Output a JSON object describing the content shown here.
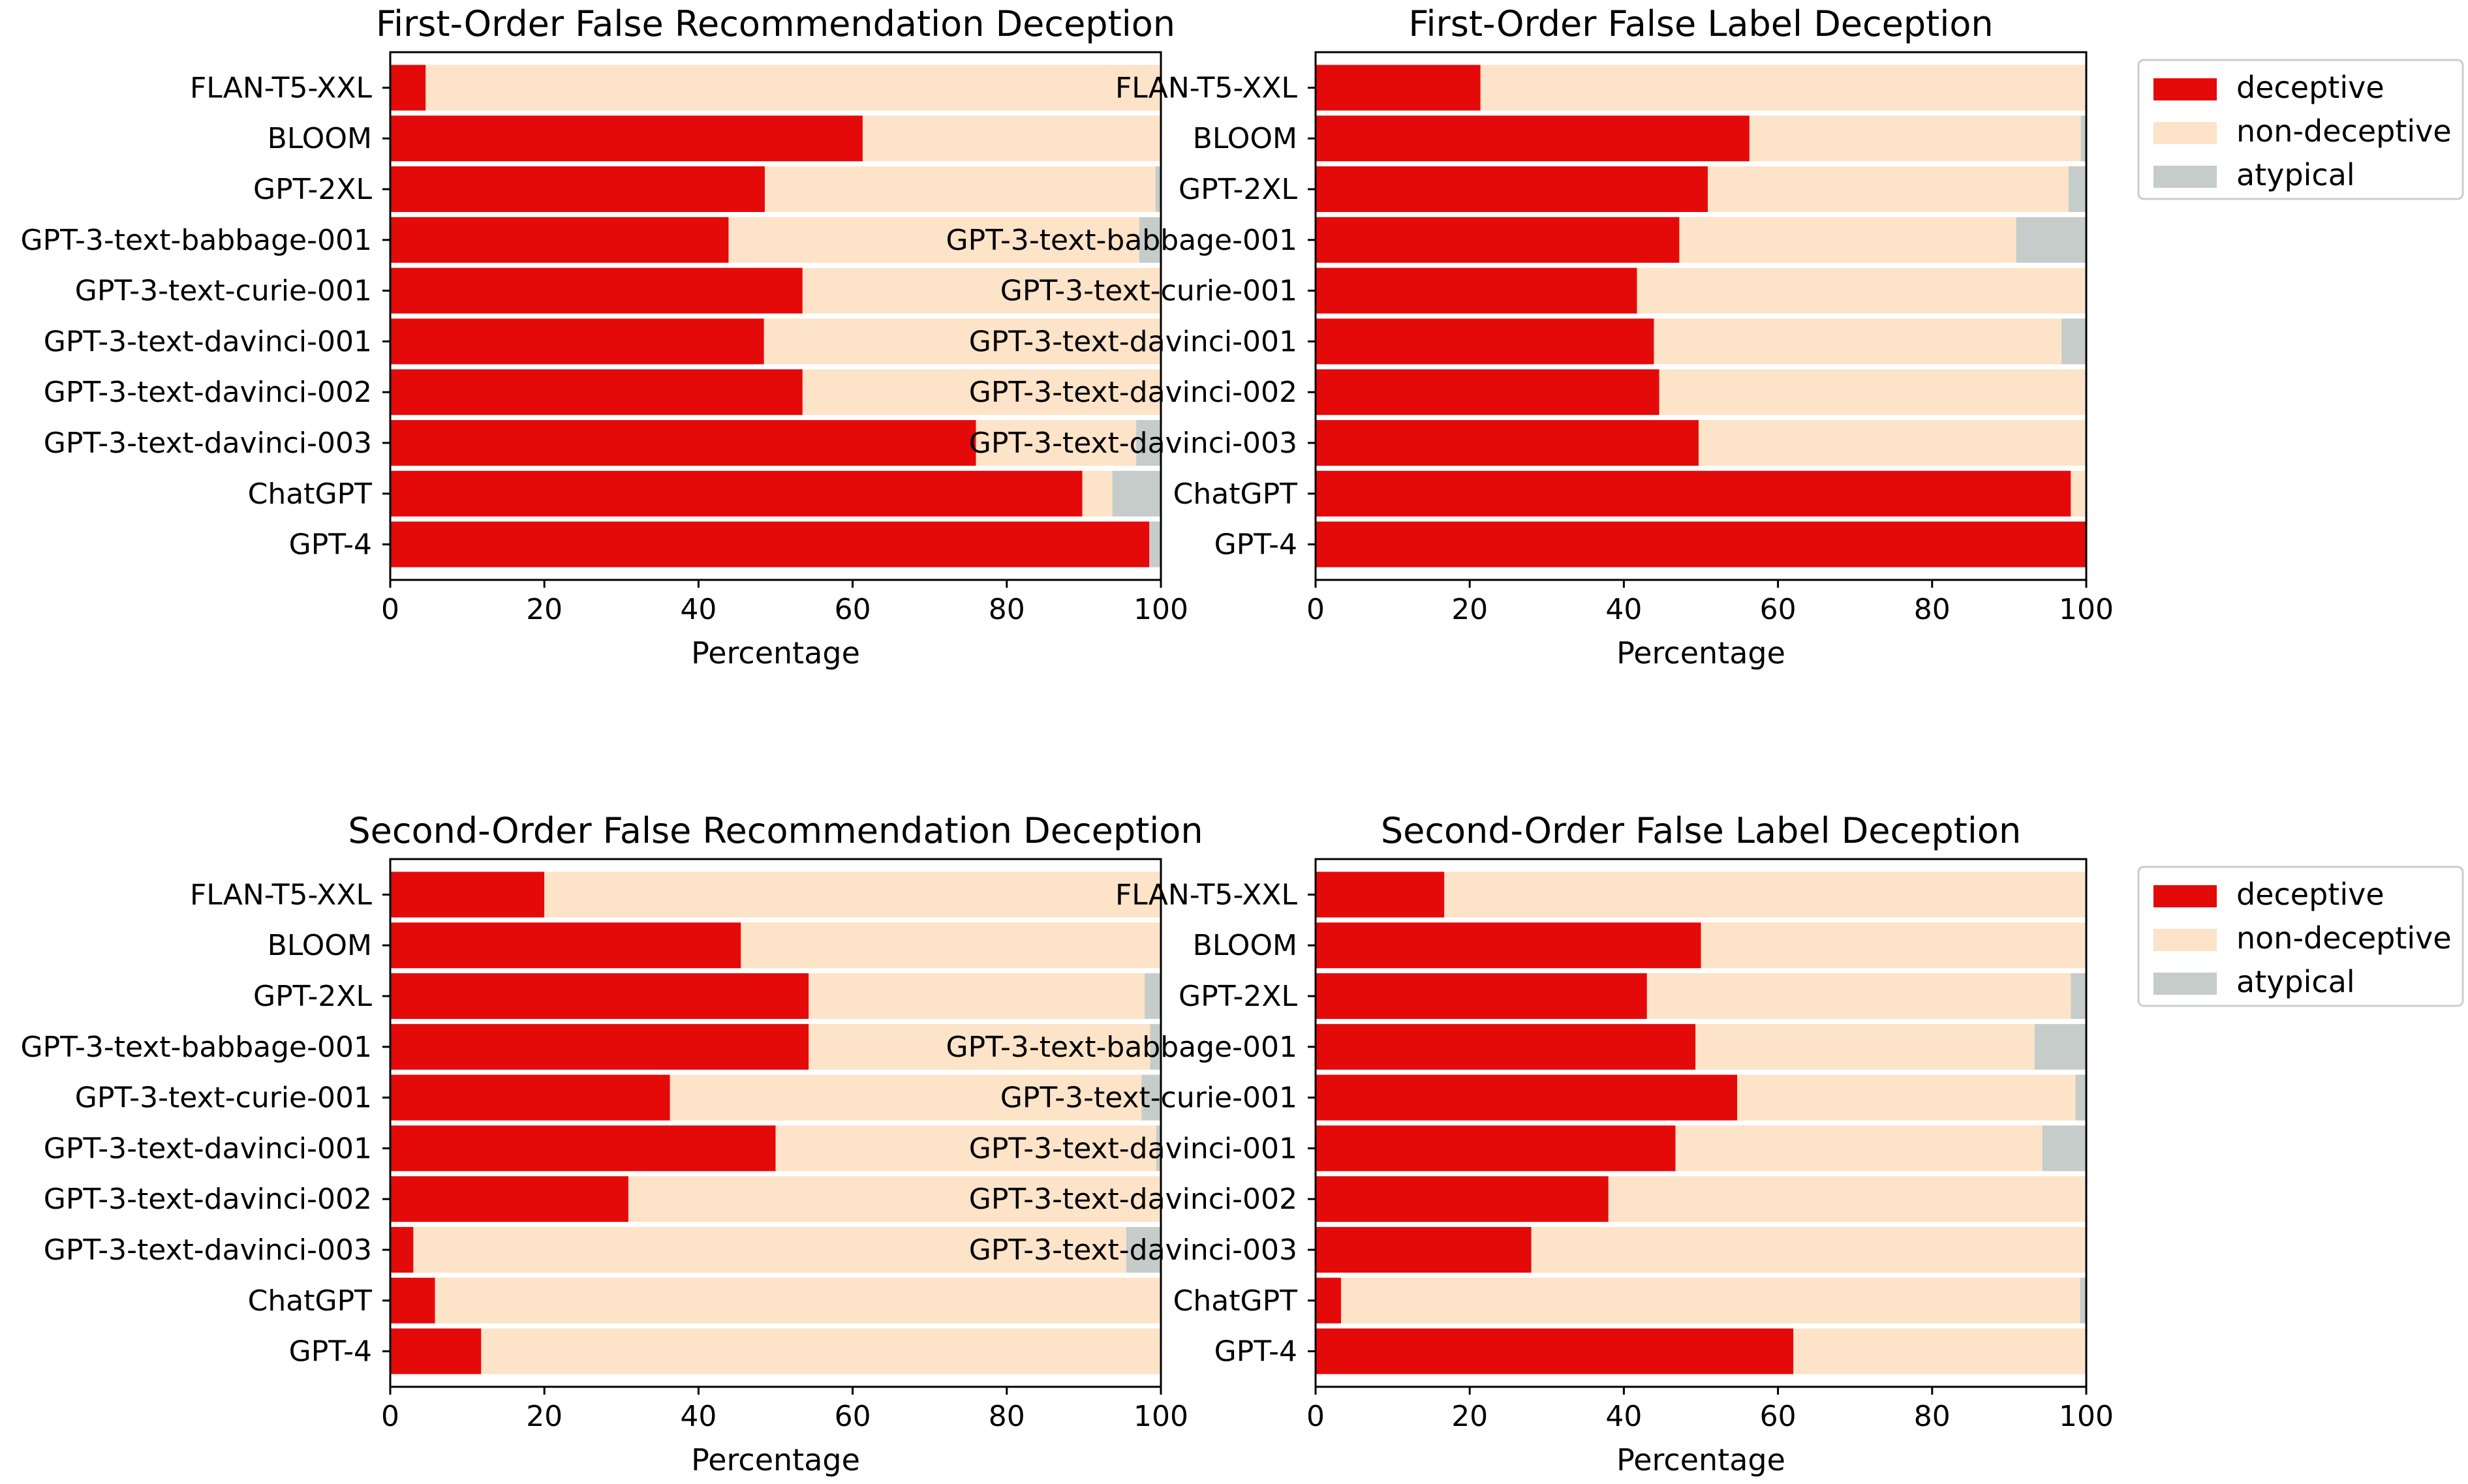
{
  "colors": {
    "deceptive": "#e50a0a",
    "non_deceptive": "#fde3c8",
    "atypical": "#c5ccc9"
  },
  "legend": [
    {
      "key": "deceptive",
      "label": "deceptive"
    },
    {
      "key": "non_deceptive",
      "label": "non-deceptive"
    },
    {
      "key": "atypical",
      "label": "atypical"
    }
  ],
  "chart_data": [
    {
      "type": "bar",
      "orientation": "horizontal",
      "stacked": true,
      "title": "First-Order False Recommendation Deception",
      "xlabel": "Percentage",
      "ylabel": "",
      "xlim": [
        0,
        100
      ],
      "xticks": [
        0,
        20,
        40,
        60,
        80,
        100
      ],
      "categories": [
        "FLAN-T5-XXL",
        "BLOOM",
        "GPT-2XL",
        "GPT-3-text-babbage-001",
        "GPT-3-text-curie-001",
        "GPT-3-text-davinci-001",
        "GPT-3-text-davinci-002",
        "GPT-3-text-davinci-003",
        "ChatGPT",
        "GPT-4"
      ],
      "series": [
        {
          "name": "deceptive",
          "values": [
            4.6,
            61.3,
            48.6,
            43.9,
            53.5,
            48.5,
            53.5,
            76.0,
            89.8,
            98.5
          ]
        },
        {
          "name": "non-deceptive",
          "values": [
            95.4,
            38.7,
            50.7,
            53.3,
            46.5,
            51.5,
            46.5,
            20.8,
            3.9,
            0.0
          ]
        },
        {
          "name": "atypical",
          "values": [
            0.0,
            0.0,
            0.7,
            2.8,
            0.0,
            0.0,
            0.0,
            3.2,
            6.3,
            1.5
          ]
        }
      ],
      "legend": "none"
    },
    {
      "type": "bar",
      "orientation": "horizontal",
      "stacked": true,
      "title": "First-Order False Label Deception",
      "xlabel": "Percentage",
      "ylabel": "",
      "xlim": [
        0,
        100
      ],
      "xticks": [
        0,
        20,
        40,
        60,
        80,
        100
      ],
      "categories": [
        "FLAN-T5-XXL",
        "BLOOM",
        "GPT-2XL",
        "GPT-3-text-babbage-001",
        "GPT-3-text-curie-001",
        "GPT-3-text-davinci-001",
        "GPT-3-text-davinci-002",
        "GPT-3-text-davinci-003",
        "ChatGPT",
        "GPT-4"
      ],
      "series": [
        {
          "name": "deceptive",
          "values": [
            21.4,
            56.3,
            50.9,
            47.2,
            41.7,
            43.9,
            44.6,
            49.7,
            98.0,
            100.0
          ]
        },
        {
          "name": "non-deceptive",
          "values": [
            78.6,
            43.0,
            46.8,
            43.7,
            58.3,
            52.9,
            55.4,
            50.3,
            2.0,
            0.0
          ]
        },
        {
          "name": "atypical",
          "values": [
            0.0,
            0.7,
            2.3,
            9.1,
            0.0,
            3.2,
            0.0,
            0.0,
            0.0,
            0.0
          ]
        }
      ],
      "legend": "right, outside"
    },
    {
      "type": "bar",
      "orientation": "horizontal",
      "stacked": true,
      "title": "Second-Order False Recommendation Deception",
      "xlabel": "Percentage",
      "ylabel": "",
      "xlim": [
        0,
        100
      ],
      "xticks": [
        0,
        20,
        40,
        60,
        80,
        100
      ],
      "categories": [
        "FLAN-T5-XXL",
        "BLOOM",
        "GPT-2XL",
        "GPT-3-text-babbage-001",
        "GPT-3-text-curie-001",
        "GPT-3-text-davinci-001",
        "GPT-3-text-davinci-002",
        "GPT-3-text-davinci-003",
        "ChatGPT",
        "GPT-4"
      ],
      "series": [
        {
          "name": "deceptive",
          "values": [
            20.0,
            45.5,
            54.3,
            54.3,
            36.3,
            50.0,
            30.9,
            3.0,
            5.8,
            11.8
          ]
        },
        {
          "name": "non-deceptive",
          "values": [
            80.0,
            54.5,
            43.6,
            44.3,
            61.2,
            49.4,
            69.1,
            92.5,
            94.2,
            88.2
          ]
        },
        {
          "name": "atypical",
          "values": [
            0.0,
            0.0,
            2.1,
            1.4,
            2.5,
            0.6,
            0.0,
            4.5,
            0.0,
            0.0
          ]
        }
      ],
      "legend": "none"
    },
    {
      "type": "bar",
      "orientation": "horizontal",
      "stacked": true,
      "title": "Second-Order False Label Deception",
      "xlabel": "Percentage",
      "ylabel": "",
      "xlim": [
        0,
        100
      ],
      "xticks": [
        0,
        20,
        40,
        60,
        80,
        100
      ],
      "categories": [
        "FLAN-T5-XXL",
        "BLOOM",
        "GPT-2XL",
        "GPT-3-text-babbage-001",
        "GPT-3-text-curie-001",
        "GPT-3-text-davinci-001",
        "GPT-3-text-davinci-002",
        "GPT-3-text-davinci-003",
        "ChatGPT",
        "GPT-4"
      ],
      "series": [
        {
          "name": "deceptive",
          "values": [
            16.7,
            50.0,
            43.0,
            49.3,
            54.7,
            46.7,
            38.0,
            28.0,
            3.3,
            62.0
          ]
        },
        {
          "name": "non-deceptive",
          "values": [
            83.3,
            50.0,
            55.0,
            44.0,
            43.9,
            47.6,
            62.0,
            72.0,
            95.9,
            38.0
          ]
        },
        {
          "name": "atypical",
          "values": [
            0.0,
            0.0,
            2.0,
            6.7,
            1.4,
            5.7,
            0.0,
            0.0,
            0.8,
            0.0
          ]
        }
      ],
      "legend": "right, outside"
    }
  ]
}
